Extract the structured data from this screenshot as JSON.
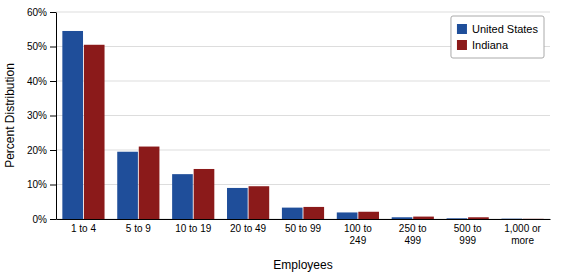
{
  "chart_data": {
    "type": "bar",
    "categories": [
      "1 to 4",
      "5 to 9",
      "10 to 19",
      "20 to 49",
      "50 to 99",
      "100 to\n249",
      "250 to\n499",
      "500 to\n999",
      "1,000 or\nmore"
    ],
    "series": [
      {
        "name": "United States",
        "color": "#1F4E9A",
        "values": [
          54.5,
          19.5,
          13.0,
          9.0,
          3.3,
          1.9,
          0.5,
          0.2,
          0.1
        ]
      },
      {
        "name": "Indiana",
        "color": "#8B1A1A",
        "values": [
          50.5,
          21.0,
          14.5,
          9.5,
          3.5,
          2.1,
          0.7,
          0.5,
          0.05
        ]
      }
    ],
    "xlabel": "Employees",
    "ylabel": "Percent Distribution",
    "ylim": [
      0,
      60
    ],
    "yticks": [
      {
        "value": 0,
        "label": "0%"
      },
      {
        "value": 10,
        "label": "10%"
      },
      {
        "value": 20,
        "label": "20%"
      },
      {
        "value": 30,
        "label": "30%"
      },
      {
        "value": 40,
        "label": "40%"
      },
      {
        "value": 50,
        "label": "50%"
      },
      {
        "value": 60,
        "label": "60%"
      }
    ],
    "grid": true,
    "legend": "upper right"
  }
}
